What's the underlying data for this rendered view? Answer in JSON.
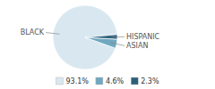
{
  "chart_data": {
    "type": "pie",
    "categories": [
      "BLACK",
      "ASIAN",
      "HISPANIC"
    ],
    "values": [
      93.1,
      4.6,
      2.3
    ],
    "value_labels": [
      "93.1%",
      "4.6%",
      "2.3%"
    ],
    "colors": [
      "#d9e8f0",
      "#6fa8c0",
      "#2d5f7a"
    ],
    "legend": "bottom"
  }
}
